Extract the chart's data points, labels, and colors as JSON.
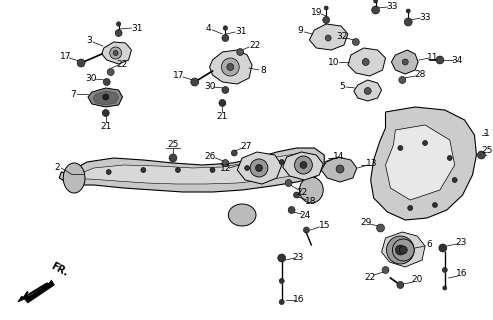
{
  "bg_color": "#ffffff",
  "line_color": "#000000",
  "gray_fill": "#d4d4d4",
  "dark_gray": "#888888",
  "mid_gray": "#bbbbbb"
}
